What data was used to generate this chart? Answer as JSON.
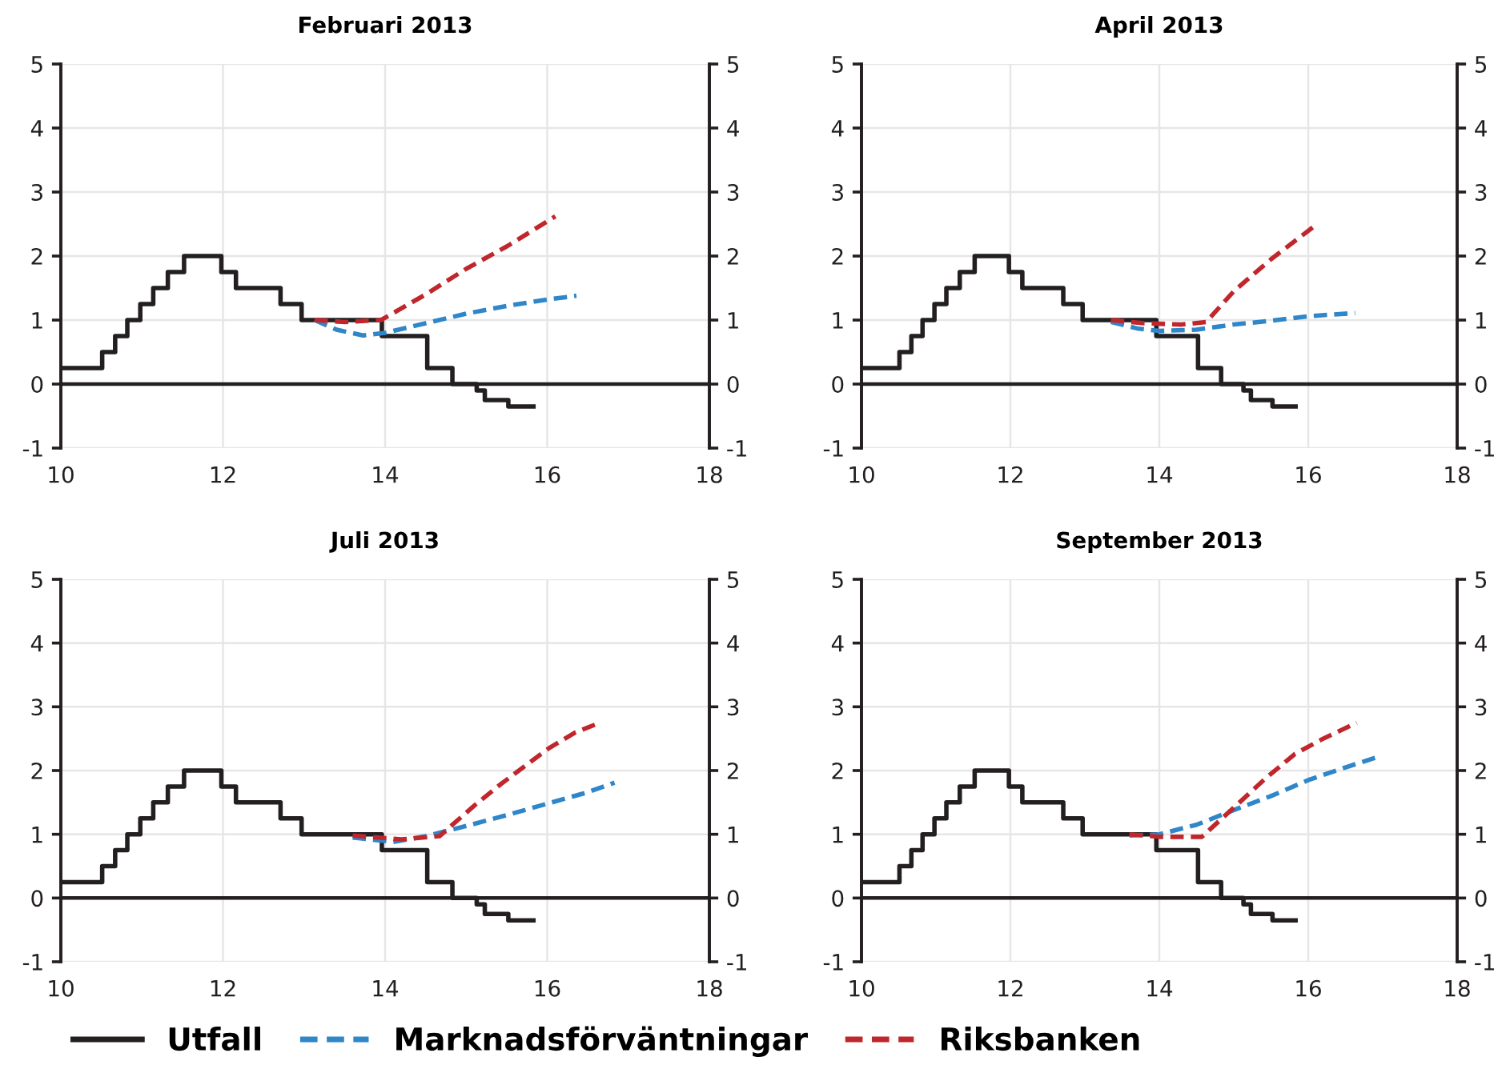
{
  "chart_data": [
    {
      "type": "line",
      "title": "Februari 2013",
      "xlim": [
        10,
        18
      ],
      "xticks": [
        10,
        12,
        14,
        16,
        18
      ],
      "ylim": [
        -1,
        5
      ],
      "yticks": [
        -1,
        0,
        1,
        2,
        3,
        4,
        5
      ],
      "y2lim": [
        -1,
        5
      ],
      "y2ticks": [
        -1,
        0,
        1,
        2,
        3,
        4,
        5
      ],
      "grid": true,
      "legend": "bottom",
      "ref_lines": [
        {
          "axis": "y",
          "value": 0,
          "color": "#231f20"
        }
      ],
      "series": [
        {
          "name": "Utfall",
          "type": "step",
          "color": "#231f20",
          "line_style": "solid",
          "x": [
            10,
            10.51,
            10.67,
            10.82,
            10.98,
            11.14,
            11.32,
            11.52,
            11.98,
            12.16,
            12.71,
            12.97,
            13.96,
            14.52,
            14.83,
            15.13,
            15.23,
            15.52,
            15.83
          ],
          "values": [
            0.25,
            0.5,
            0.75,
            1.0,
            1.25,
            1.5,
            1.75,
            2.0,
            1.75,
            1.5,
            1.25,
            1.0,
            0.75,
            0.25,
            0,
            -0.1,
            -0.25,
            -0.35,
            -0.35
          ]
        },
        {
          "name": "Marknadsförväntningar",
          "color": "#2f86c8",
          "line_style": "dashed",
          "x": [
            13.13,
            13.4,
            13.73,
            14.0,
            14.5,
            15.0,
            15.5,
            16.0,
            16.36
          ],
          "values": [
            1.0,
            0.85,
            0.76,
            0.8,
            0.95,
            1.1,
            1.22,
            1.32,
            1.38
          ]
        },
        {
          "name": "Riksbanken",
          "color": "#c0272d",
          "line_style": "dashed",
          "x": [
            13.13,
            13.5,
            13.95,
            14.5,
            15.0,
            15.5,
            16.1
          ],
          "values": [
            1.0,
            0.97,
            1.0,
            1.4,
            1.8,
            2.15,
            2.62
          ]
        }
      ]
    },
    {
      "type": "line",
      "title": "April 2013",
      "xlim": [
        10,
        18
      ],
      "xticks": [
        10,
        12,
        14,
        16,
        18
      ],
      "ylim": [
        -1,
        5
      ],
      "yticks": [
        -1,
        0,
        1,
        2,
        3,
        4,
        5
      ],
      "y2lim": [
        -1,
        5
      ],
      "y2ticks": [
        -1,
        0,
        1,
        2,
        3,
        4,
        5
      ],
      "grid": true,
      "ref_lines": [
        {
          "axis": "y",
          "value": 0,
          "color": "#231f20"
        }
      ],
      "series": [
        {
          "type": "step",
          "color": "#231f20",
          "line_style": "solid",
          "x": [
            10,
            10.51,
            10.67,
            10.82,
            10.98,
            11.14,
            11.32,
            11.52,
            11.98,
            12.16,
            12.71,
            12.97,
            13.96,
            14.52,
            14.83,
            15.13,
            15.23,
            15.52,
            15.83
          ],
          "values": [
            0.25,
            0.5,
            0.75,
            1.0,
            1.25,
            1.5,
            1.75,
            2.0,
            1.75,
            1.5,
            1.25,
            1.0,
            0.75,
            0.25,
            0,
            -0.1,
            -0.25,
            -0.35,
            -0.35
          ]
        },
        {
          "color": "#2f86c8",
          "line_style": "dashed",
          "x": [
            13.35,
            13.7,
            14.0,
            14.5,
            15.0,
            15.5,
            16.0,
            16.63
          ],
          "values": [
            0.97,
            0.87,
            0.83,
            0.85,
            0.93,
            0.99,
            1.06,
            1.11
          ]
        },
        {
          "color": "#c0272d",
          "line_style": "dashed",
          "x": [
            13.35,
            13.8,
            14.3,
            14.63,
            15.0,
            15.5,
            16.12
          ],
          "values": [
            1.0,
            0.95,
            0.93,
            0.97,
            1.45,
            1.95,
            2.5
          ]
        }
      ]
    },
    {
      "type": "line",
      "title": "Juli 2013",
      "xlim": [
        10,
        18
      ],
      "xticks": [
        10,
        12,
        14,
        16,
        18
      ],
      "ylim": [
        -1,
        5
      ],
      "yticks": [
        -1,
        0,
        1,
        2,
        3,
        4,
        5
      ],
      "y2lim": [
        -1,
        5
      ],
      "y2ticks": [
        -1,
        0,
        1,
        2,
        3,
        4,
        5
      ],
      "grid": true,
      "ref_lines": [
        {
          "axis": "y",
          "value": 0,
          "color": "#231f20"
        }
      ],
      "series": [
        {
          "type": "step",
          "color": "#231f20",
          "line_style": "solid",
          "x": [
            10,
            10.51,
            10.67,
            10.82,
            10.98,
            11.14,
            11.32,
            11.52,
            11.98,
            12.16,
            12.71,
            12.97,
            13.96,
            14.52,
            14.83,
            15.13,
            15.23,
            15.52,
            15.83
          ],
          "values": [
            0.25,
            0.5,
            0.75,
            1.0,
            1.25,
            1.5,
            1.75,
            2.0,
            1.75,
            1.5,
            1.25,
            1.0,
            0.75,
            0.25,
            0,
            -0.1,
            -0.25,
            -0.35,
            -0.35
          ]
        },
        {
          "color": "#2f86c8",
          "line_style": "dashed",
          "x": [
            13.6,
            14.1,
            14.5,
            15.0,
            15.5,
            16.0,
            16.5,
            16.83
          ],
          "values": [
            0.95,
            0.88,
            0.97,
            1.13,
            1.3,
            1.48,
            1.66,
            1.81
          ]
        },
        {
          "color": "#c0272d",
          "line_style": "dashed",
          "x": [
            13.6,
            14.2,
            14.67,
            15.1,
            15.43,
            16.02,
            16.35,
            16.65
          ],
          "values": [
            0.98,
            0.92,
            0.97,
            1.45,
            1.79,
            2.35,
            2.6,
            2.75
          ]
        }
      ]
    },
    {
      "type": "line",
      "title": "September 2013",
      "xlim": [
        10,
        18
      ],
      "xticks": [
        10,
        12,
        14,
        16,
        18
      ],
      "ylim": [
        -1,
        5
      ],
      "yticks": [
        -1,
        0,
        1,
        2,
        3,
        4,
        5
      ],
      "y2lim": [
        -1,
        5
      ],
      "y2ticks": [
        -1,
        0,
        1,
        2,
        3,
        4,
        5
      ],
      "grid": true,
      "ref_lines": [
        {
          "axis": "y",
          "value": 0,
          "color": "#231f20"
        }
      ],
      "series": [
        {
          "type": "step",
          "color": "#231f20",
          "line_style": "solid",
          "x": [
            10,
            10.51,
            10.67,
            10.82,
            10.98,
            11.14,
            11.32,
            11.52,
            11.98,
            12.16,
            12.71,
            12.97,
            13.96,
            14.52,
            14.83,
            15.13,
            15.23,
            15.52,
            15.83
          ],
          "values": [
            0.25,
            0.5,
            0.75,
            1.0,
            1.25,
            1.5,
            1.75,
            2.0,
            1.75,
            1.5,
            1.25,
            1.0,
            0.75,
            0.25,
            0,
            -0.1,
            -0.25,
            -0.35,
            -0.35
          ]
        },
        {
          "color": "#2f86c8",
          "line_style": "dashed",
          "x": [
            13.6,
            14.0,
            14.5,
            15.0,
            15.5,
            16.0,
            16.5,
            16.9
          ],
          "values": [
            0.98,
            1.0,
            1.15,
            1.38,
            1.6,
            1.85,
            2.05,
            2.2
          ]
        },
        {
          "color": "#c0272d",
          "line_style": "dashed",
          "x": [
            13.6,
            14.0,
            14.57,
            15.03,
            15.43,
            15.82,
            16.2,
            16.65
          ],
          "values": [
            1.0,
            0.96,
            0.96,
            1.45,
            1.88,
            2.26,
            2.5,
            2.75
          ]
        }
      ]
    }
  ]
}
